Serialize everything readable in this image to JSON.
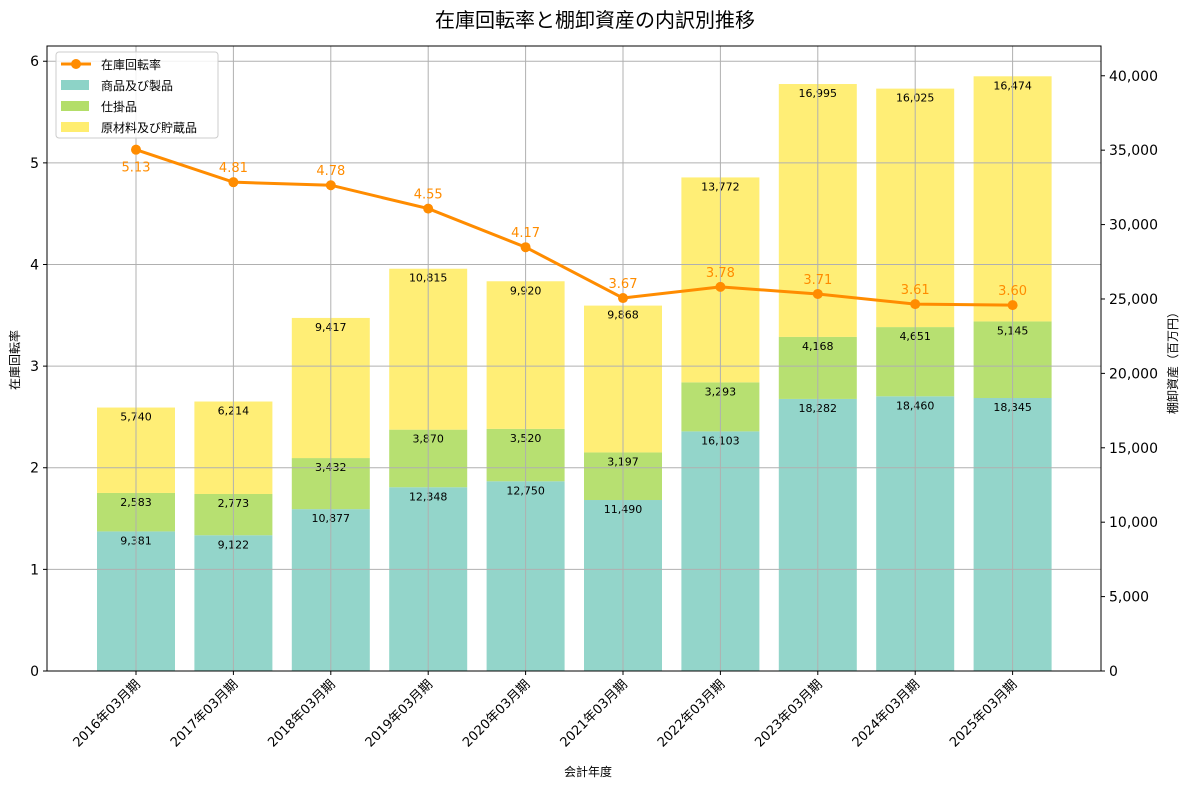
{
  "chart_data": {
    "type": "bar+line",
    "title": "在庫回転率と棚卸資産の内訳別推移",
    "xlabel": "会計年度",
    "ylabel_left": "在庫回転率",
    "ylabel_right": "棚卸資産（百万円）",
    "categories": [
      "2016年03月期",
      "2017年03月期",
      "2018年03月期",
      "2019年03月期",
      "2020年03月期",
      "2021年03月期",
      "2022年03月期",
      "2023年03月期",
      "2024年03月期",
      "2025年03月期"
    ],
    "ylim_left": [
      0,
      6.15
    ],
    "ylim_right": [
      0,
      42000
    ],
    "yticks_left": [
      "0",
      "1",
      "2",
      "3",
      "4",
      "5",
      "6"
    ],
    "yticks_right": [
      "0",
      "5,000",
      "10,000",
      "15,000",
      "20,000",
      "25,000",
      "30,000",
      "35,000",
      "40,000"
    ],
    "grid": true,
    "legend_position": "top-left",
    "line": {
      "name": "在庫回転率",
      "color": "#ff8c00",
      "values": [
        5.13,
        4.81,
        4.78,
        4.55,
        4.17,
        3.67,
        3.78,
        3.71,
        3.61,
        3.6
      ],
      "labels": [
        "5.13",
        "4.81",
        "4.78",
        "4.55",
        "4.17",
        "3.67",
        "3.78",
        "3.71",
        "3.61",
        "3.60"
      ]
    },
    "series": [
      {
        "name": "商品及び製品",
        "color": "#8dd3c7",
        "values": [
          9381,
          9122,
          10877,
          12348,
          12750,
          11490,
          16103,
          18282,
          18460,
          18345
        ],
        "labels": [
          "9,381",
          "9,122",
          "10,877",
          "12,348",
          "12,750",
          "11,490",
          "16,103",
          "18,282",
          "18,460",
          "18,345"
        ]
      },
      {
        "name": "仕掛品",
        "color": "#b3de69",
        "values": [
          2583,
          2773,
          3432,
          3870,
          3520,
          3197,
          3293,
          4168,
          4651,
          5145
        ],
        "labels": [
          "2,583",
          "2,773",
          "3,432",
          "3,870",
          "3,520",
          "3,197",
          "3,293",
          "4,168",
          "4,651",
          "5,145"
        ]
      },
      {
        "name": "原材料及び貯蔵品",
        "color": "#ffed6f",
        "values": [
          5740,
          6214,
          9417,
          10815,
          9920,
          9868,
          13772,
          16995,
          16025,
          16474
        ],
        "labels": [
          "5,740",
          "6,214",
          "9,417",
          "10,815",
          "9,920",
          "9,868",
          "13,772",
          "16,995",
          "16,025",
          "16,474"
        ]
      }
    ]
  }
}
